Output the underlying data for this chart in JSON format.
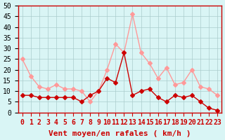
{
  "hours": [
    0,
    1,
    2,
    3,
    4,
    5,
    6,
    7,
    8,
    9,
    10,
    11,
    12,
    13,
    14,
    15,
    16,
    17,
    18,
    19,
    20,
    21,
    22,
    23
  ],
  "rafales": [
    25,
    17,
    12,
    11,
    13,
    11,
    11,
    10,
    5,
    10,
    20,
    32,
    28,
    46,
    28,
    23,
    16,
    21,
    13,
    14,
    20,
    12,
    11,
    8
  ],
  "moyen": [
    8,
    8,
    7,
    7,
    7,
    7,
    7,
    5,
    8,
    10,
    16,
    14,
    28,
    8,
    10,
    11,
    7,
    5,
    8,
    7,
    8,
    5,
    2,
    1
  ],
  "color_rafales": "#ff9999",
  "color_moyen": "#cc0000",
  "bg_color": "#d9f5f5",
  "grid_color": "#aacccc",
  "xlabel": "Vent moyen/en rafales ( km/h )",
  "ylim": [
    0,
    50
  ],
  "yticks": [
    0,
    5,
    10,
    15,
    20,
    25,
    30,
    35,
    40,
    45,
    50
  ],
  "axis_label_fontsize": 8,
  "tick_fontsize": 7
}
